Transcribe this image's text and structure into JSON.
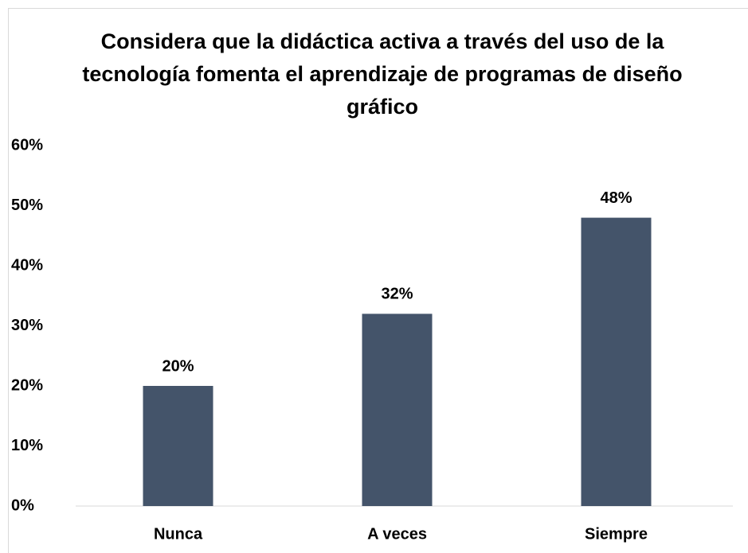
{
  "chart_data": {
    "type": "bar",
    "title": "Considera que la didáctica activa a través del uso de la tecnología fomenta el aprendizaje de programas de diseño gráfico",
    "categories": [
      "Nunca",
      "A veces",
      "Siempre"
    ],
    "values": [
      20,
      32,
      48
    ],
    "value_labels": [
      "20%",
      "32%",
      "48%"
    ],
    "color": "#44546a",
    "ylim": [
      0,
      60
    ],
    "yticks": [
      {
        "value": 0,
        "label": "0%"
      },
      {
        "value": 10,
        "label": "10%"
      },
      {
        "value": 20,
        "label": "20%"
      },
      {
        "value": 30,
        "label": "30%"
      },
      {
        "value": 40,
        "label": "40%"
      },
      {
        "value": 50,
        "label": "50%"
      },
      {
        "value": 60,
        "label": "60%"
      }
    ],
    "grid": false
  }
}
